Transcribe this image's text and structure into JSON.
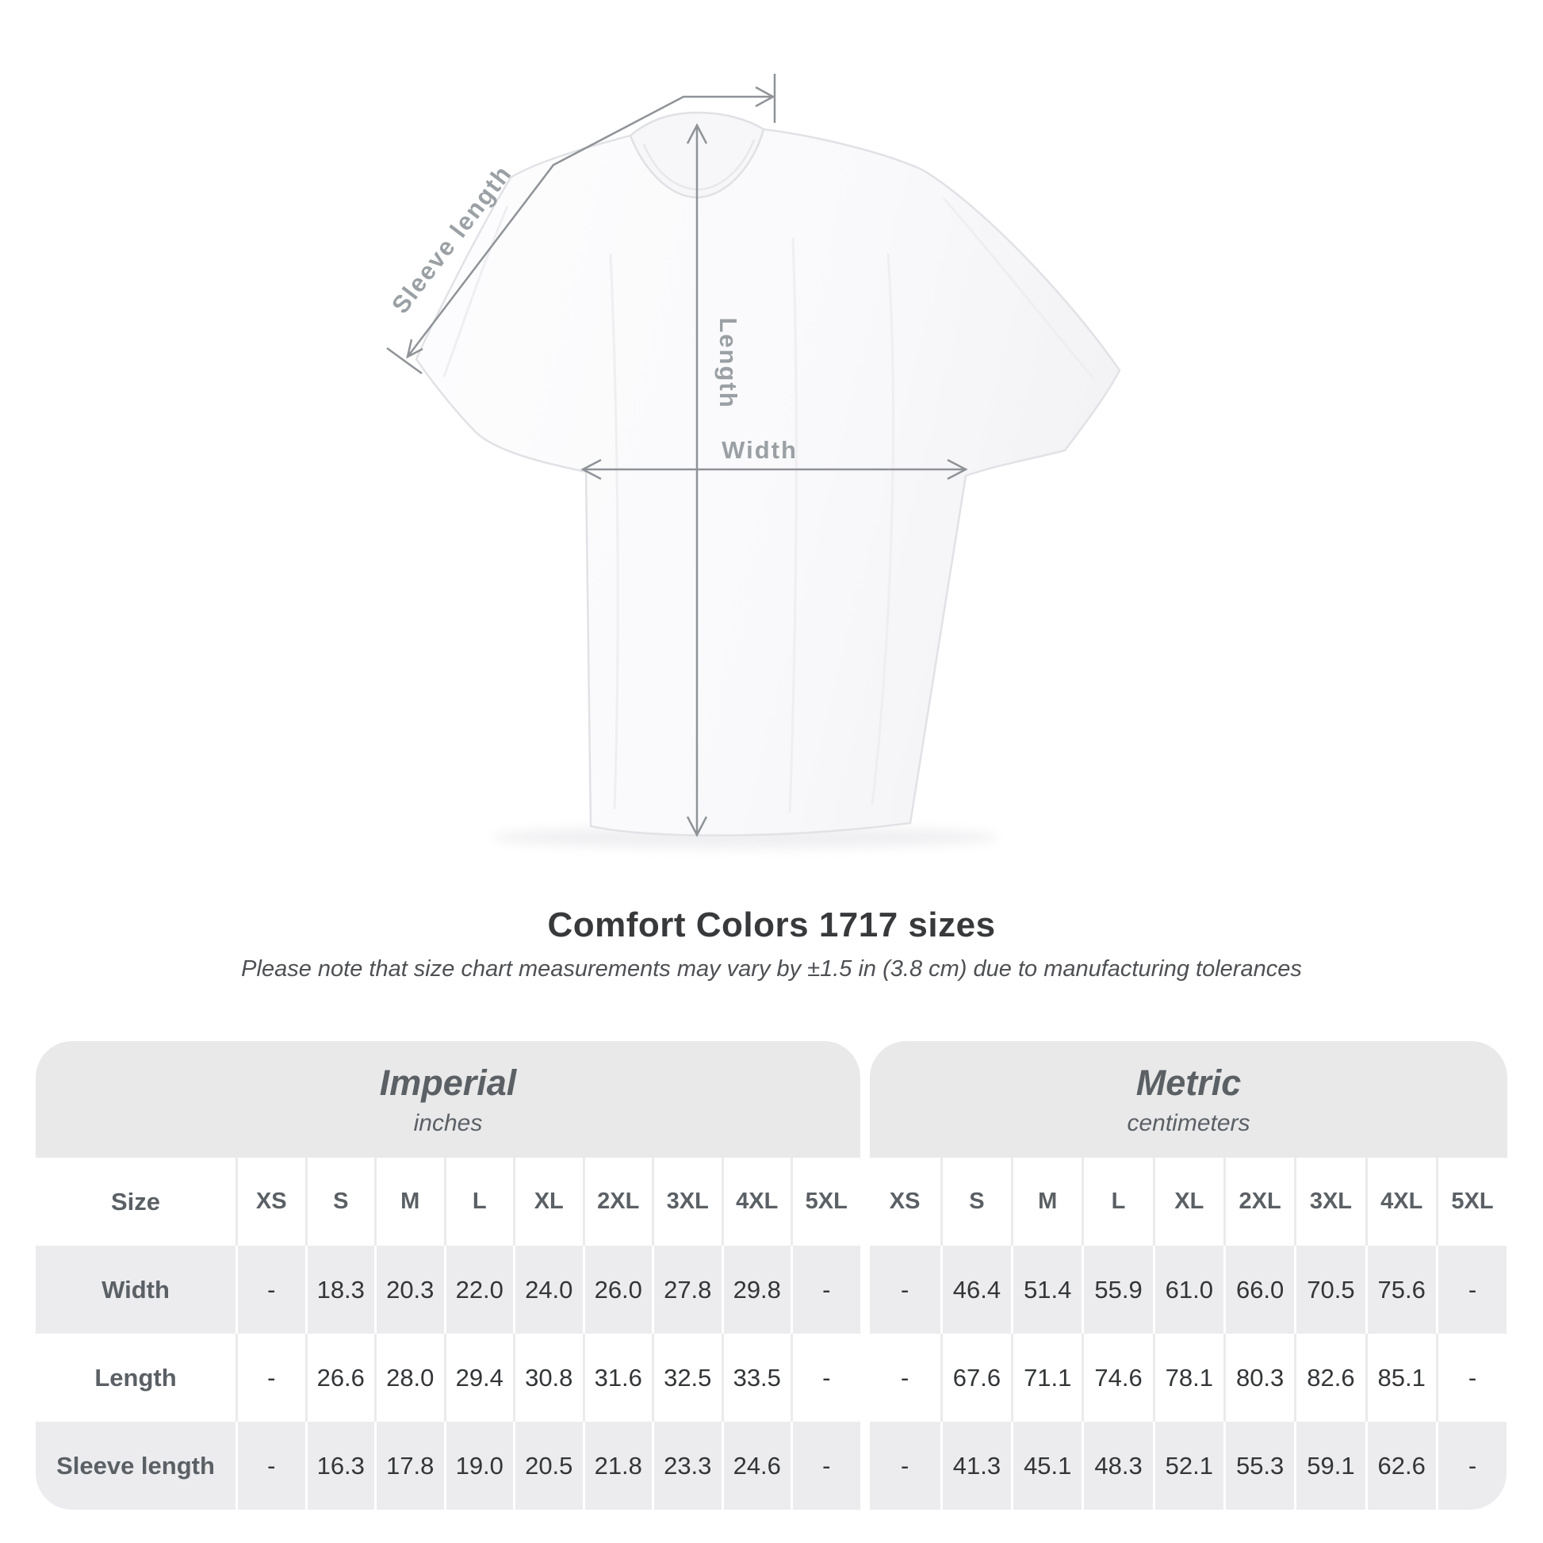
{
  "title": "Comfort Colors 1717 sizes",
  "subtitle": "Please note that size chart measurements may vary by ±1.5 in (3.8 cm) due to manufacturing tolerances",
  "diagram": {
    "sleeve_length_label": "Sleeve length",
    "length_label": "Length",
    "width_label": "Width"
  },
  "colors": {
    "annotation_line": "#8f9397",
    "annotation_text": "#9aa0a4",
    "band_grey": "#e9e9ea",
    "row_grey": "#ececee",
    "header_text": "#5b6065",
    "value_text": "#333537",
    "title_text": "#38393b"
  },
  "chart_data": {
    "type": "table",
    "title": "Comfort Colors 1717 sizes",
    "note": "Please note that size chart measurements may vary by ±1.5 in (3.8 cm) due to manufacturing tolerances",
    "size_label": "Size",
    "sizes": [
      "XS",
      "S",
      "M",
      "L",
      "XL",
      "2XL",
      "3XL",
      "4XL",
      "5XL"
    ],
    "unit_groups": [
      {
        "label": "Imperial",
        "sublabel": "inches"
      },
      {
        "label": "Metric",
        "sublabel": "centimeters"
      }
    ],
    "rows": [
      {
        "label": "Width",
        "imperial": [
          "-",
          "18.3",
          "20.3",
          "22.0",
          "24.0",
          "26.0",
          "27.8",
          "29.8",
          "-"
        ],
        "metric": [
          "-",
          "46.4",
          "51.4",
          "55.9",
          "61.0",
          "66.0",
          "70.5",
          "75.6",
          "-"
        ]
      },
      {
        "label": "Length",
        "imperial": [
          "-",
          "26.6",
          "28.0",
          "29.4",
          "30.8",
          "31.6",
          "32.5",
          "33.5",
          "-"
        ],
        "metric": [
          "-",
          "67.6",
          "71.1",
          "74.6",
          "78.1",
          "80.3",
          "82.6",
          "85.1",
          "-"
        ]
      },
      {
        "label": "Sleeve length",
        "imperial": [
          "-",
          "16.3",
          "17.8",
          "19.0",
          "20.5",
          "21.8",
          "23.3",
          "24.6",
          "-"
        ],
        "metric": [
          "-",
          "41.3",
          "45.1",
          "48.3",
          "52.1",
          "55.3",
          "59.1",
          "62.6",
          "-"
        ]
      }
    ]
  }
}
